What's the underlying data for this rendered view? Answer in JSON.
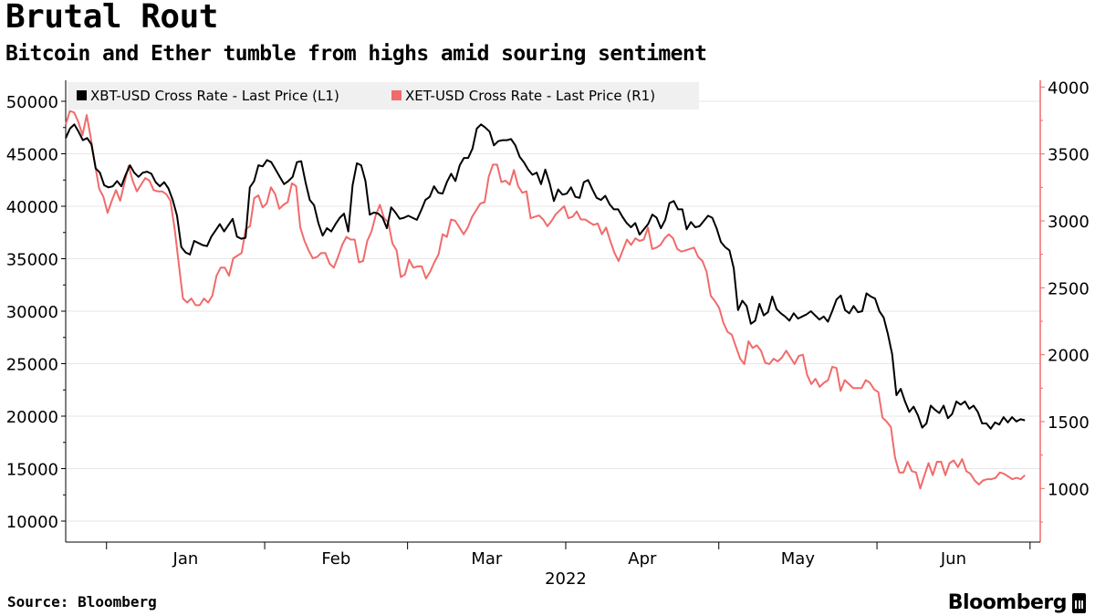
{
  "header": {
    "title": "Brutal Rout",
    "subtitle": "Bitcoin and Ether tumble from highs amid souring sentiment"
  },
  "footer": {
    "source": "Source: Bloomberg",
    "brand": "Bloomberg",
    "brand_icon": "bloomberg-terminal-icon"
  },
  "colors": {
    "btc": "#000000",
    "eth": "#f16b6b",
    "grid": "#e6e6e6",
    "axis": "#000000",
    "legend_bg": "#f0f0f0"
  },
  "chart_data": {
    "type": "line",
    "x_axis": {
      "tick_labels": [
        "Jan",
        "Feb",
        "Mar",
        "Apr",
        "May",
        "Jun"
      ],
      "year_label": "2022"
    },
    "y_left": {
      "ticks": [
        50000,
        45000,
        40000,
        35000,
        30000,
        25000,
        20000,
        15000,
        10000
      ],
      "range": [
        8000,
        52000
      ]
    },
    "y_right": {
      "ticks": [
        4000,
        3500,
        3000,
        2500,
        2000,
        1500,
        1000
      ],
      "range": [
        600,
        4050
      ]
    },
    "grid": true,
    "legend_placement": "top-left",
    "series": [
      {
        "name": "XBT-USD Cross Rate - Last Price (L1)",
        "axis": "left",
        "start": "2021-12-24",
        "end": "2022-06-30",
        "values": [
          46500,
          47400,
          47800,
          47100,
          46300,
          46500,
          45900,
          43600,
          43200,
          42000,
          41800,
          41900,
          42400,
          41900,
          43000,
          43900,
          43200,
          42800,
          43200,
          43300,
          43100,
          42300,
          41900,
          42300,
          41700,
          40600,
          39100,
          36100,
          35600,
          35400,
          36700,
          36500,
          36300,
          36200,
          37100,
          37700,
          38300,
          37600,
          38200,
          38800,
          37100,
          36900,
          37000,
          41800,
          42400,
          43900,
          43800,
          44400,
          44200,
          43500,
          42800,
          42100,
          42400,
          42800,
          44200,
          44300,
          42300,
          40600,
          40100,
          38400,
          37200,
          37900,
          37600,
          38300,
          38900,
          39300,
          37600,
          42000,
          44100,
          43900,
          42400,
          39200,
          39400,
          39300,
          38900,
          37900,
          39900,
          39400,
          38800,
          38900,
          39100,
          38900,
          38700,
          39600,
          40600,
          40900,
          41900,
          41300,
          41200,
          42300,
          43100,
          42400,
          43900,
          44600,
          44600,
          45500,
          47400,
          47800,
          47500,
          47100,
          45800,
          46200,
          46300,
          46300,
          46400,
          45800,
          44700,
          44200,
          43500,
          43000,
          43200,
          42100,
          43500,
          42200,
          40500,
          41600,
          41100,
          41200,
          41800,
          40900,
          40800,
          42300,
          42500,
          41600,
          40800,
          40600,
          41000,
          40200,
          39700,
          39700,
          39000,
          38400,
          38000,
          38400,
          37300,
          37800,
          38300,
          39200,
          38900,
          37900,
          38700,
          40300,
          40500,
          39700,
          39700,
          37800,
          38500,
          38000,
          38100,
          38600,
          39100,
          38900,
          37900,
          36600,
          36100,
          35800,
          34100,
          30100,
          31000,
          30500,
          28800,
          29100,
          30700,
          29600,
          29900,
          31400,
          30200,
          29800,
          29500,
          29100,
          29800,
          29300,
          29500,
          29700,
          30000,
          29600,
          29200,
          29500,
          29000,
          30000,
          31100,
          31500,
          30100,
          29800,
          30500,
          29900,
          30000,
          31700,
          31400,
          31200,
          30000,
          29400,
          27800,
          25900,
          22000,
          22600,
          21400,
          20400,
          20900,
          20100,
          18900,
          19300,
          21000,
          20600,
          20300,
          21000,
          19800,
          20200,
          21400,
          21100,
          21400,
          20700,
          21000,
          20400,
          19300,
          19300,
          18800,
          19400,
          19200,
          19900,
          19400,
          19900,
          19500,
          19700,
          19600
        ]
      },
      {
        "name": "XET-USD Cross Rate - Last Price (R1)",
        "axis": "right",
        "start": "2021-12-24",
        "end": "2022-06-30",
        "values": [
          3720,
          3820,
          3810,
          3740,
          3640,
          3790,
          3620,
          3420,
          3240,
          3180,
          3060,
          3150,
          3230,
          3150,
          3280,
          3410,
          3300,
          3220,
          3270,
          3320,
          3300,
          3230,
          3220,
          3220,
          3200,
          3150,
          2940,
          2680,
          2420,
          2390,
          2420,
          2370,
          2370,
          2420,
          2390,
          2440,
          2590,
          2650,
          2650,
          2590,
          2720,
          2740,
          2760,
          2940,
          2960,
          3170,
          3190,
          3100,
          3130,
          3250,
          3200,
          3090,
          3120,
          3140,
          3280,
          3260,
          2950,
          2850,
          2780,
          2720,
          2730,
          2760,
          2760,
          2680,
          2650,
          2730,
          2820,
          2880,
          2860,
          2860,
          2690,
          2700,
          2850,
          2920,
          3040,
          3120,
          3020,
          2990,
          2830,
          2780,
          2580,
          2600,
          2710,
          2650,
          2660,
          2660,
          2570,
          2620,
          2690,
          2750,
          2900,
          2880,
          3010,
          3000,
          2950,
          2900,
          2950,
          3030,
          3080,
          3130,
          3140,
          3330,
          3420,
          3420,
          3290,
          3300,
          3270,
          3380,
          3260,
          3210,
          3220,
          3020,
          3030,
          3040,
          3010,
          2960,
          3000,
          3050,
          3080,
          3110,
          3020,
          3030,
          3070,
          3010,
          3010,
          2990,
          2970,
          2980,
          2900,
          2950,
          2850,
          2760,
          2700,
          2780,
          2860,
          2820,
          2870,
          2850,
          2860,
          2950,
          2790,
          2800,
          2820,
          2870,
          2900,
          2870,
          2790,
          2770,
          2780,
          2790,
          2800,
          2730,
          2700,
          2620,
          2440,
          2400,
          2350,
          2240,
          2170,
          2150,
          2060,
          1970,
          1930,
          2100,
          2050,
          2070,
          2030,
          1940,
          1930,
          1970,
          1950,
          1980,
          2030,
          1980,
          1930,
          1990,
          2000,
          1850,
          1780,
          1820,
          1760,
          1790,
          1810,
          1910,
          1900,
          1730,
          1810,
          1780,
          1750,
          1750,
          1750,
          1810,
          1790,
          1740,
          1720,
          1530,
          1500,
          1460,
          1230,
          1120,
          1120,
          1200,
          1130,
          1120,
          1000,
          1100,
          1190,
          1100,
          1200,
          1200,
          1100,
          1190,
          1210,
          1160,
          1220,
          1130,
          1110,
          1060,
          1030,
          1060,
          1070,
          1070,
          1080,
          1120,
          1110,
          1090,
          1070,
          1080,
          1070,
          1100
        ]
      }
    ]
  }
}
